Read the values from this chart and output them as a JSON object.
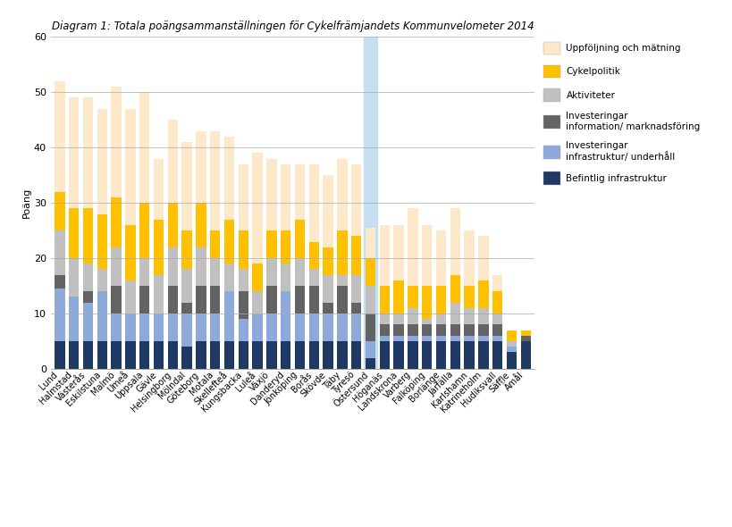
{
  "title": "Diagram 1: Totala poängsammanställningen för Cykelfrämjandets Kommunvelometer 2014",
  "ylabel": "Poäng",
  "ylim": [
    0,
    60
  ],
  "yticks": [
    0,
    10,
    20,
    30,
    40,
    50,
    60
  ],
  "categories": [
    "Lund",
    "Halmstad",
    "Västerås",
    "Eskilstuna",
    "Malmö",
    "Umeå",
    "Uppsala",
    "Gävle",
    "Helsingborg",
    "Mölndal",
    "Göteborg",
    "Motala",
    "Skellefteå",
    "Kungsbacka",
    "Luleå",
    "Växjö",
    "Danderyd",
    "Jönköping",
    "Borås",
    "Skövde",
    "Täby",
    "Tyresö",
    "Östersund",
    "Höganäs",
    "Landskrona",
    "Varberg",
    "Falköping",
    "Borlänge",
    "Järfälla",
    "Karlshamn",
    "Katrineholm",
    "Hudiksvall",
    "Säffle",
    "Ämål"
  ],
  "ostersund_index": 22,
  "series": {
    "Befintlig infrastruktur": [
      5,
      5,
      5,
      5,
      5,
      5,
      5,
      5,
      5,
      4,
      5,
      5,
      5,
      5,
      5,
      5,
      5,
      5,
      5,
      5,
      5,
      5,
      2,
      5,
      5,
      5,
      5,
      5,
      5,
      5,
      5,
      5,
      3,
      5
    ],
    "Investeringar infrastruktur/ underhåll": [
      9.5,
      8,
      7,
      9,
      5,
      5,
      5,
      5,
      5,
      6,
      5,
      5,
      9,
      4,
      5,
      5,
      9,
      5,
      5,
      5,
      5,
      5,
      3,
      1,
      1,
      1,
      1,
      1,
      1,
      1,
      1,
      1,
      1,
      0
    ],
    "Investeringar information/ marknadsföring": [
      2.5,
      0,
      2,
      0,
      5,
      0,
      5,
      0,
      5,
      2,
      5,
      5,
      0,
      5,
      0,
      5,
      0,
      5,
      5,
      2,
      5,
      2,
      5,
      2,
      2,
      2,
      2,
      2,
      2,
      2,
      2,
      2,
      0,
      1
    ],
    "Aktiviteter": [
      8,
      7,
      5,
      4,
      7,
      6,
      5,
      7,
      7,
      6,
      7,
      5,
      5,
      4,
      4,
      5,
      5,
      5,
      3,
      5,
      2,
      5,
      5,
      2,
      2,
      3,
      1,
      2,
      4,
      3,
      3,
      2,
      1,
      0
    ],
    "Cykelpolitik": [
      7,
      9,
      10,
      10,
      9,
      10,
      10,
      10,
      8,
      7,
      8,
      5,
      8,
      7,
      5,
      5,
      6,
      7,
      5,
      5,
      8,
      7,
      5,
      5,
      6,
      4,
      6,
      5,
      5,
      4,
      5,
      4,
      2,
      1
    ],
    "Uppföljning och mätning": [
      20,
      20,
      20,
      19,
      20,
      21,
      20,
      11,
      15,
      16,
      13,
      18,
      15,
      12,
      20,
      13,
      12,
      10,
      14,
      13,
      13,
      13,
      5.5,
      11,
      10,
      14,
      11,
      10,
      12,
      10,
      8,
      3,
      0,
      0
    ]
  },
  "colors": {
    "Befintlig infrastruktur": "#1f3864",
    "Investeringar infrastruktur/ underhåll": "#8eaadb",
    "Investeringar information/ marknadsföring": "#636363",
    "Aktiviteter": "#c0c0c0",
    "Cykelpolitik": "#ffc000",
    "Uppföljning och mätning": "#fde9c9"
  },
  "legend_order": [
    "Uppföljning och mätning",
    "Cykelpolitik",
    "Aktiviteter",
    "Investeringar information/ marknadsföring",
    "Investeringar infrastruktur/ underhåll",
    "Befintlig infrastruktur"
  ],
  "legend_labels": {
    "Investeringar information/ marknadsföring": "Investeringar\ninformation/ marknadsföring",
    "Investeringar infrastruktur/ underhåll": "Investeringar\ninfrastruktur/ underhåll"
  },
  "background_color": "#ffffff",
  "ostersund_color": "#c5dff0"
}
